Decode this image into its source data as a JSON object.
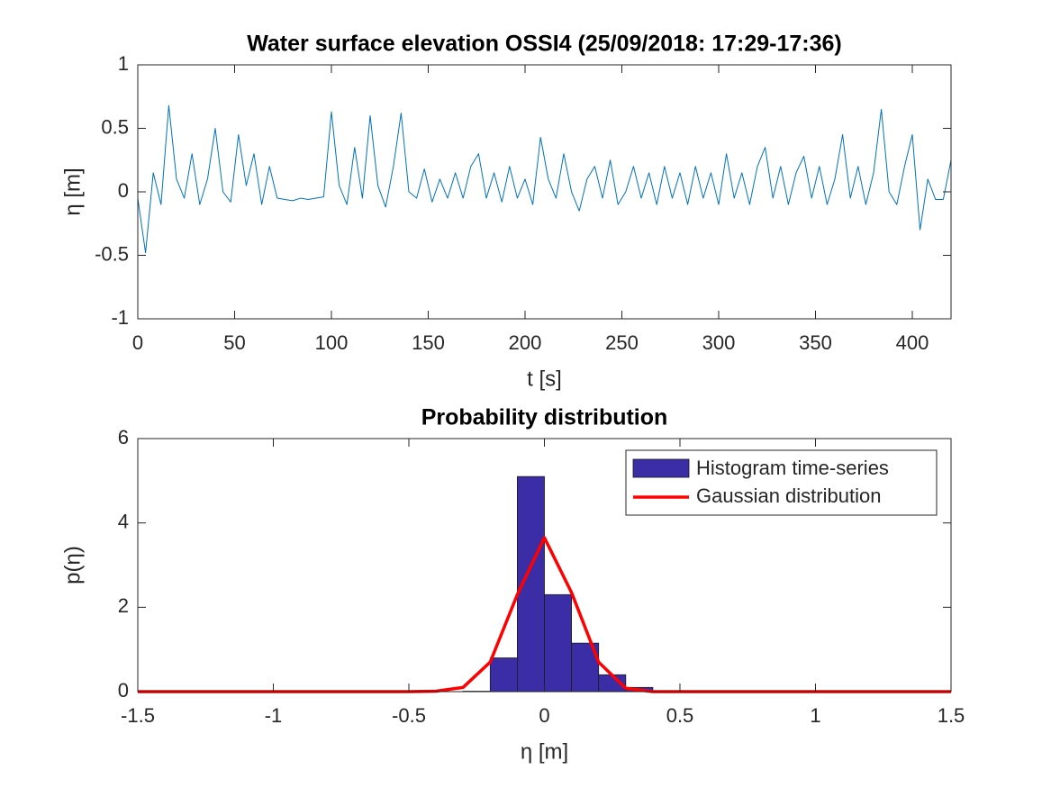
{
  "chart_data": [
    {
      "type": "line",
      "title": "Water surface elevation OSSI4 (25/09/2018: 17:29-17:36)",
      "xlabel": "t [s]",
      "ylabel": "η [m]",
      "xlim": [
        0,
        420
      ],
      "ylim": [
        -1,
        1
      ],
      "xticks": [
        0,
        50,
        100,
        150,
        200,
        250,
        300,
        350,
        400
      ],
      "yticks": [
        -1,
        -0.5,
        0,
        0.5,
        1
      ],
      "series": [
        {
          "color": "#0072bd",
          "x": [
            0,
            4,
            8,
            12,
            16,
            20,
            24,
            28,
            32,
            36,
            40,
            44,
            48,
            52,
            56,
            60,
            64,
            68,
            72,
            76,
            80,
            84,
            88,
            92,
            96,
            100,
            104,
            108,
            112,
            116,
            120,
            124,
            128,
            132,
            136,
            140,
            144,
            148,
            152,
            156,
            160,
            164,
            168,
            172,
            176,
            180,
            184,
            188,
            192,
            196,
            200,
            204,
            208,
            212,
            216,
            220,
            224,
            228,
            232,
            236,
            240,
            244,
            248,
            252,
            256,
            260,
            264,
            268,
            272,
            276,
            280,
            284,
            288,
            292,
            296,
            300,
            304,
            308,
            312,
            316,
            320,
            324,
            328,
            332,
            336,
            340,
            344,
            348,
            352,
            356,
            360,
            364,
            368,
            372,
            376,
            380,
            384,
            388,
            392,
            396,
            400,
            404,
            408,
            412,
            416,
            420
          ],
          "values": [
            -0.05,
            -0.48,
            0.15,
            -0.1,
            0.68,
            0.1,
            -0.05,
            0.3,
            -0.1,
            0.1,
            0.5,
            0.0,
            -0.08,
            0.45,
            0.05,
            0.3,
            -0.1,
            0.2,
            -0.05,
            -0.06,
            -0.07,
            -0.05,
            -0.06,
            -0.05,
            -0.04,
            0.63,
            0.05,
            -0.1,
            0.35,
            -0.05,
            0.6,
            0.05,
            -0.12,
            0.2,
            0.62,
            0.0,
            -0.05,
            0.18,
            -0.08,
            0.1,
            -0.05,
            0.15,
            -0.05,
            0.2,
            0.3,
            -0.05,
            0.15,
            -0.08,
            0.2,
            -0.05,
            0.1,
            -0.1,
            0.43,
            0.1,
            -0.05,
            0.3,
            0.0,
            -0.15,
            0.1,
            0.2,
            -0.05,
            0.25,
            -0.1,
            0.0,
            0.2,
            -0.05,
            0.15,
            -0.1,
            0.2,
            -0.05,
            0.15,
            -0.1,
            0.2,
            -0.05,
            0.15,
            -0.1,
            0.3,
            -0.05,
            0.15,
            -0.1,
            0.2,
            0.35,
            -0.05,
            0.2,
            -0.1,
            0.15,
            0.28,
            -0.05,
            0.2,
            -0.1,
            0.1,
            0.45,
            -0.05,
            0.2,
            -0.1,
            0.15,
            0.65,
            0.0,
            -0.1,
            0.2,
            0.45,
            -0.3,
            0.1,
            -0.06,
            -0.06,
            0.25
          ]
        }
      ]
    },
    {
      "type": "histogram",
      "title": "Probability distribution",
      "xlabel": "η [m]",
      "ylabel": "p(η)",
      "xlim": [
        -1.5,
        1.5
      ],
      "ylim": [
        0,
        6
      ],
      "xticks": [
        -1.5,
        -1,
        -0.5,
        0,
        0.5,
        1,
        1.5
      ],
      "yticks": [
        0,
        2,
        4,
        6
      ],
      "legend": "northeast",
      "name": "Histogram time-series",
      "color": "#3a2da6",
      "bins": [
        -1.5,
        -1.4,
        -1.3,
        -1.2,
        -1.1,
        -1.0,
        -0.9,
        -0.8,
        -0.7,
        -0.6,
        -0.5,
        -0.4,
        -0.3,
        -0.2,
        -0.1,
        0,
        0.1,
        0.2,
        0.3,
        0.4,
        0.5,
        0.6,
        0.7,
        0.8,
        0.9,
        1.0,
        1.1,
        1.2,
        1.3,
        1.4,
        1.5
      ],
      "values": [
        0,
        0,
        0,
        0,
        0,
        0,
        0,
        0,
        0,
        0,
        0,
        0,
        0.01,
        0.8,
        5.1,
        2.3,
        1.15,
        0.4,
        0.1,
        0,
        0,
        0,
        0,
        0,
        0,
        0,
        0,
        0,
        0,
        0
      ],
      "line": {
        "name": "Gaussian distribution",
        "color": "#ff0000",
        "x": [
          -1.5,
          -1.4,
          -1.3,
          -1.2,
          -1.1,
          -1.0,
          -0.9,
          -0.8,
          -0.7,
          -0.6,
          -0.5,
          -0.4,
          -0.3,
          -0.2,
          -0.1,
          0,
          0.1,
          0.2,
          0.3,
          0.4,
          0.5,
          0.6,
          0.7,
          0.8,
          0.9,
          1.0,
          1.1,
          1.2,
          1.3,
          1.4,
          1.5
        ],
        "values": [
          0,
          0,
          0,
          0,
          0,
          0,
          0,
          0,
          0,
          0,
          0,
          0.01,
          0.1,
          0.7,
          2.3,
          3.65,
          2.35,
          0.7,
          0.08,
          0,
          0,
          0,
          0,
          0,
          0,
          0,
          0,
          0,
          0,
          0,
          0
        ]
      }
    }
  ]
}
